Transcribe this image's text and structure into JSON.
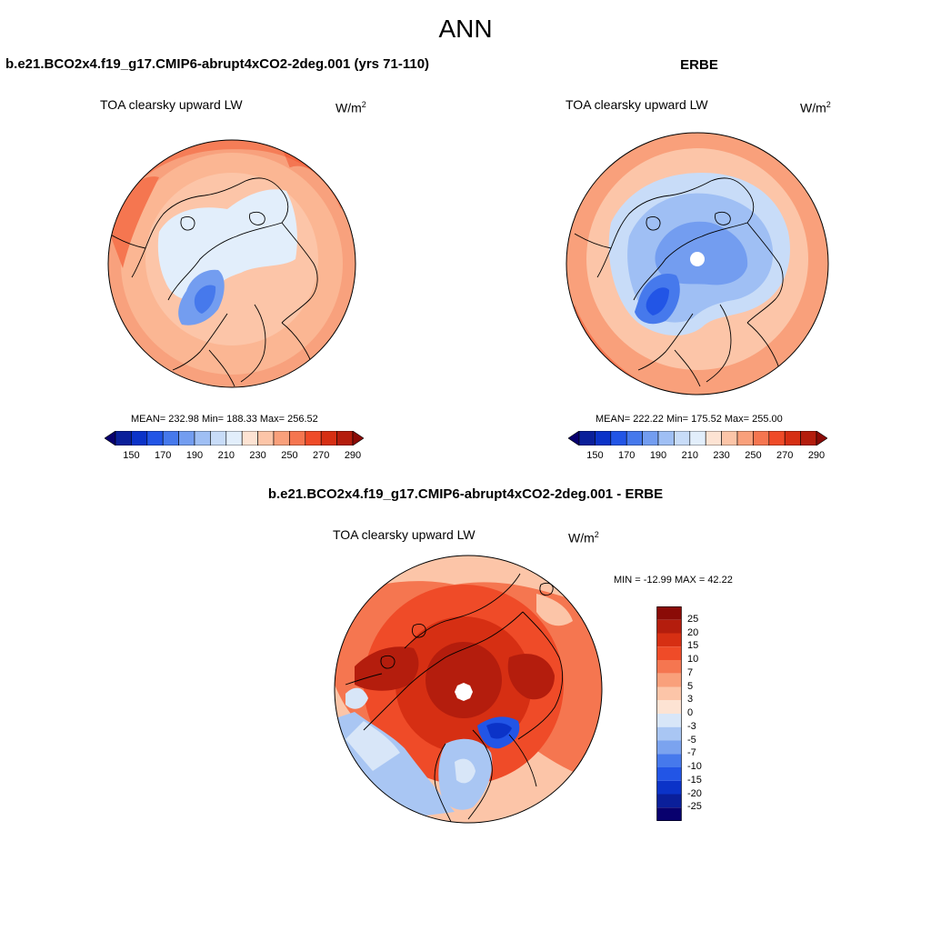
{
  "page_title": "ANN",
  "panels": {
    "left": {
      "case_title": "b.e21.BCO2x4.f19_g17.CMIP6-abrupt4xCO2-2deg.001 (yrs 71-110)",
      "variable": "TOA clearsky upward LW",
      "units_base": "W/m",
      "units_exp": "2",
      "stats": "MEAN= 232.98  Min= 188.33  Max= 256.52"
    },
    "right": {
      "case_title": "ERBE",
      "variable": "TOA clearsky upward LW",
      "units_base": "W/m",
      "units_exp": "2",
      "stats": "MEAN= 222.22  Min= 175.52  Max= 255.00"
    },
    "diff": {
      "case_title": "b.e21.BCO2x4.f19_g17.CMIP6-abrupt4xCO2-2deg.001 - ERBE",
      "variable": "TOA clearsky upward LW",
      "units_base": "W/m",
      "units_exp": "2",
      "stats": "MIN = -12.99 MAX =  42.22"
    }
  },
  "colorbar_abs": {
    "tick_labels": [
      "150",
      "170",
      "190",
      "210",
      "230",
      "250",
      "270",
      "290"
    ],
    "colors": [
      "#08006e",
      "#0a1f9a",
      "#0b33c8",
      "#2255e6",
      "#4679ec",
      "#739df0",
      "#9fbff4",
      "#c8dcf8",
      "#e2eefb",
      "#fde3d3",
      "#fcc5a8",
      "#f9a07b",
      "#f57650",
      "#ef4b28",
      "#d62f13",
      "#b41d0d",
      "#8a0b07"
    ]
  },
  "colorbar_diff": {
    "tick_labels": [
      "25",
      "20",
      "15",
      "10",
      "7",
      "5",
      "3",
      "0",
      "-3",
      "-5",
      "-7",
      "-10",
      "-15",
      "-20",
      "-25"
    ],
    "colors": [
      "#8a0b07",
      "#b41d0d",
      "#d62f13",
      "#ef4b28",
      "#f57650",
      "#f9a07b",
      "#fcc5a8",
      "#fde3d3",
      "#d8e6f8",
      "#a9c6f3",
      "#7ba3ef",
      "#4679ec",
      "#2255e6",
      "#0b33c8",
      "#0a1f9a",
      "#08006e"
    ]
  }
}
